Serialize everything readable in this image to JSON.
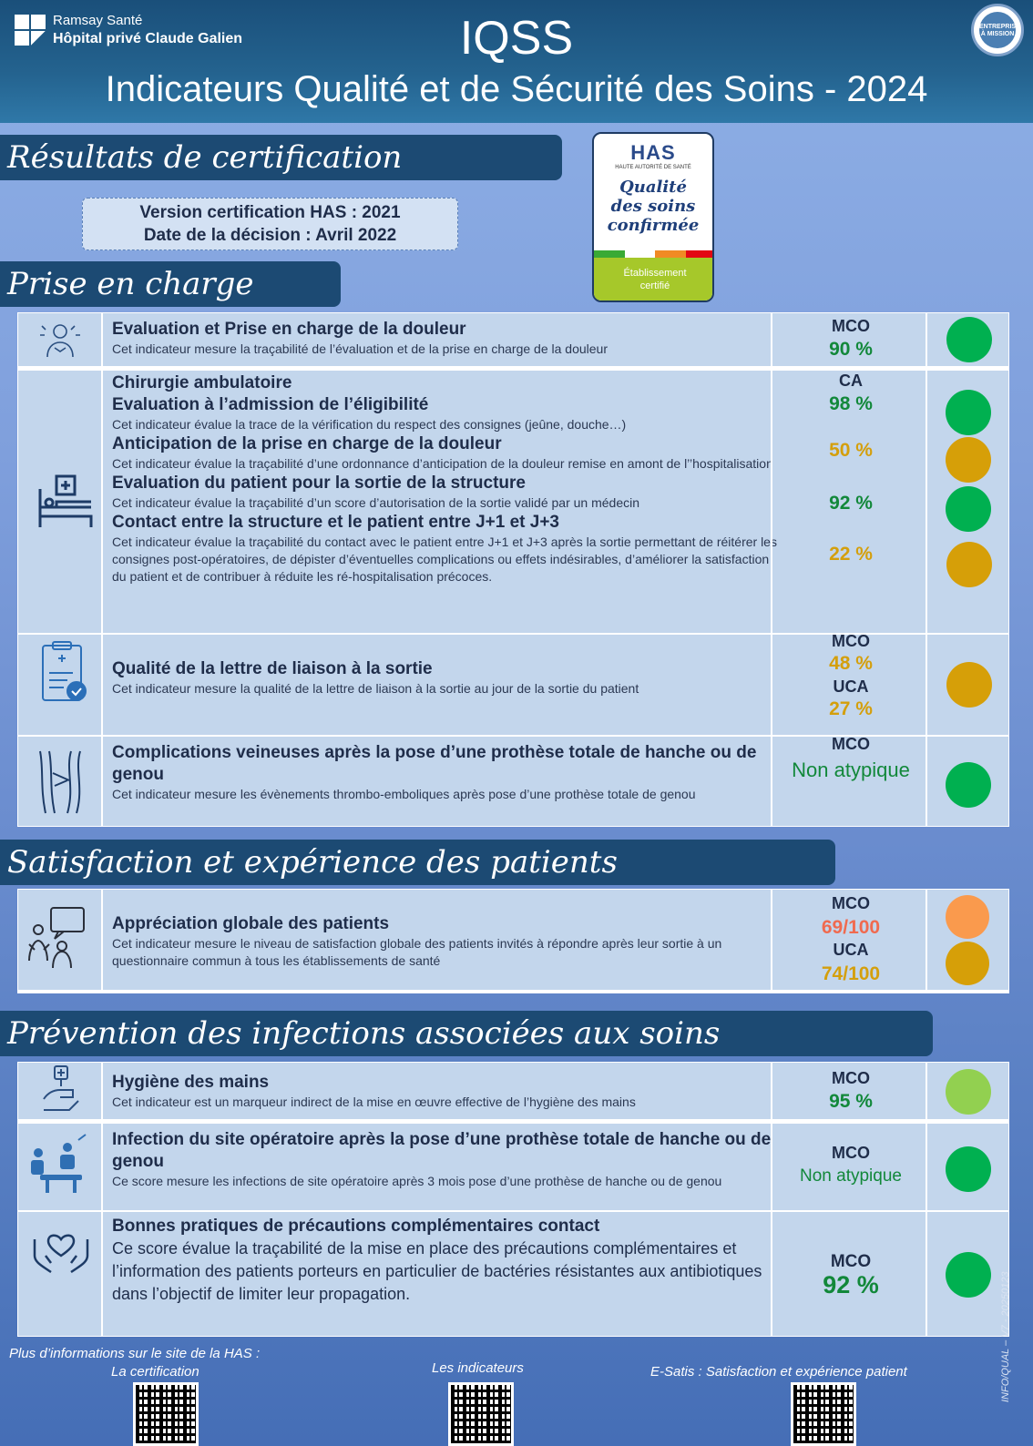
{
  "header": {
    "brand_line1": "Ramsay Santé",
    "brand_line2": "Hôpital privé Claude Galien",
    "title": "IQSS",
    "subtitle": "Indicateurs Qualité et de Sécurité des Soins - 2024",
    "mission_badge": "ENTREPRISE À MISSION"
  },
  "sections": {
    "certification": "Résultats de certification",
    "prise_en_charge": "Prise en charge",
    "satisfaction": "Satisfaction et expérience des patients",
    "prevention": "Prévention des infections associées aux soins"
  },
  "certification": {
    "version": "Version certification HAS : 2021",
    "decision": "Date de la décision : Avril 2022",
    "has_logo": "HAS",
    "has_small": "HAUTE AUTORITÉ DE SANTÉ",
    "has_line1": "Qualité",
    "has_line2": "des soins",
    "has_line3": "confirmée",
    "has_cert1": "Établissement",
    "has_cert2": "certifié"
  },
  "rows": {
    "douleur": {
      "title": "Evaluation et Prise en charge de la douleur",
      "desc": "Cet indicateur mesure la traçabilité de l’évaluation et de la prise en charge de la douleur",
      "label": "MCO",
      "value": "90 %"
    },
    "ambu": {
      "title": "Chirurgie ambulatoire",
      "label": "CA",
      "i1_title": "Evaluation à l’admission de l’éligibilité",
      "i1_desc": "Cet indicateur évalue la trace de la vérification du respect des consignes (jeûne, douche…)",
      "i1_value": "98 %",
      "i2_title": "Anticipation de la prise en charge de la douleur",
      "i2_desc": "Cet indicateur évalue la traçabilité d’une ordonnance d’anticipation de la douleur remise en amont de l’’hospitalisation",
      "i2_value": "50 %",
      "i3_title": "Evaluation du patient pour la sortie de la structure",
      "i3_desc": "Cet indicateur évalue la traçabilité d’un score d’autorisation de la sortie validé par un médecin",
      "i3_value": "92 %",
      "i4_title": "Contact entre la structure et le patient entre J+1 et J+3",
      "i4_desc": "Cet indicateur évalue la traçabilité du contact avec le patient entre J+1 et J+3 après la sortie permettant de réitérer les consignes post-opératoires, de dépister d’éventuelles complications ou effets indésirables, d’améliorer la satisfaction du patient et de contribuer à réduite les ré-hospitalisation précoces.",
      "i4_value": "22 %"
    },
    "lettre": {
      "title": "Qualité de la lettre de liaison à la sortie",
      "desc": "Cet indicateur mesure la qualité de la lettre de liaison à la sortie au jour de la sortie du patient",
      "label1": "MCO",
      "value1": "48 %",
      "label2": "UCA",
      "value2": "27 %"
    },
    "veineuses": {
      "title": "Complications veineuses après la pose d’une prothèse totale de hanche ou de genou",
      "desc": "Cet indicateur mesure les évènements thrombo-emboliques après pose d’une prothèse totale de genou",
      "label": "MCO",
      "value": "Non atypique"
    },
    "satisfaction": {
      "title": "Appréciation globale des patients",
      "desc": "Cet indicateur mesure le niveau de satisfaction globale des patients invités à répondre après leur sortie à un questionnaire commun à tous les établissements de santé",
      "label1": "MCO",
      "value1": "69/100",
      "label2": "UCA",
      "value2": "74/100"
    },
    "hygiene": {
      "title": "Hygiène des mains",
      "desc": "Cet indicateur est un marqueur indirect de la mise en œuvre effective de l’hygiène des mains",
      "label": "MCO",
      "value": "95 %"
    },
    "infection": {
      "title": "Infection du site opératoire après la pose d’une prothèse totale de hanche ou de genou",
      "desc": "Ce score mesure les infections de site opératoire après 3 mois pose d’une prothèse de hanche ou de genou",
      "label": "MCO",
      "value": "Non atypique"
    },
    "precautions": {
      "title": "Bonnes pratiques de précautions complémentaires contact",
      "desc": "Ce score évalue la traçabilité de la mise en place des précautions complémentaires et l’information des patients porteurs en particulier de bactéries résistantes aux antibiotiques dans l’objectif de limiter leur propagation.",
      "label": "MCO",
      "value": "92 %"
    }
  },
  "footer": {
    "intro": "Plus d’informations sur le site de la HAS :",
    "link1": "La certification",
    "link2": "Les indicateurs",
    "link3": "E-Satis : Satisfaction et expérience patient",
    "ref": "INFO/QUAL – V7 - 20250123"
  },
  "colors": {
    "green": "#00b050",
    "orange": "#d69f08",
    "light_orange": "#fa9a4d",
    "light_green": "#92d050"
  }
}
